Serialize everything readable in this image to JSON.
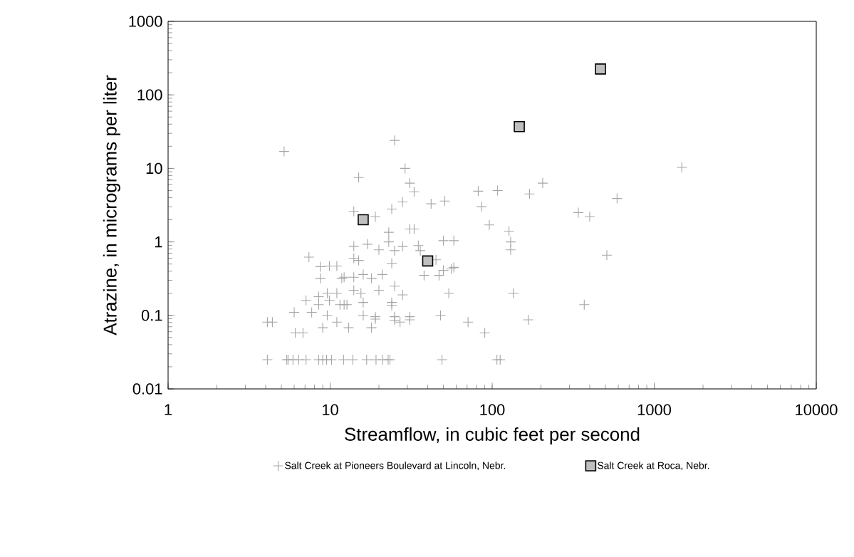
{
  "chart_data": {
    "type": "scatter",
    "xlabel": "Streamflow, in cubic feet per second",
    "ylabel": "Atrazine, in micrograms per liter",
    "log": "xy",
    "grid": false,
    "legend": "bottom",
    "xlim": [
      1,
      10000
    ],
    "xticks": [
      1,
      10,
      100,
      1000,
      10000
    ],
    "ylim": [
      0.01,
      1000
    ],
    "yticks": [
      0.01,
      0.1,
      1,
      10,
      100,
      1000
    ],
    "series": [
      {
        "name": "Salt Creek at Pioneers Boulevard at Lincoln, Nebr.",
        "color": "#a6a6a6",
        "marker": "cross",
        "x": [
          5.2,
          25,
          29,
          15,
          31,
          33,
          82,
          108,
          86,
          28,
          24,
          42,
          51,
          14,
          19,
          31,
          33,
          23,
          96,
          127,
          130,
          130,
          50,
          58,
          14,
          17,
          20,
          23,
          25,
          28,
          35,
          36,
          14,
          15,
          24,
          45,
          58,
          56,
          50,
          47,
          38,
          12.2,
          14,
          16,
          18,
          21,
          25,
          28,
          20,
          14,
          15.5,
          16,
          12.7,
          24,
          24,
          54,
          135,
          16,
          19,
          25,
          31,
          48,
          7.4,
          8.7,
          9.9,
          11,
          8.7,
          11.8,
          8.5,
          9.6,
          11,
          7.1,
          8.5,
          9.9,
          11.5,
          12.2,
          6,
          7.7,
          9.6,
          19,
          25,
          27,
          31,
          71,
          90,
          4.1,
          4.4,
          6.1,
          6.8,
          9,
          11,
          13,
          18,
          4.1,
          5.4,
          5.5,
          5.9,
          6.4,
          7.1,
          8.5,
          9,
          9.5,
          10.2,
          12.1,
          13.8,
          16.8,
          19.2,
          21.1,
          22.8,
          23.4,
          49,
          107,
          112,
          1480,
          205,
          170,
          590,
          340,
          400,
          510,
          370,
          167
        ],
        "values": [
          17,
          24,
          10,
          7.5,
          6.3,
          4.8,
          4.9,
          5,
          3,
          3.5,
          2.8,
          3.3,
          3.6,
          2.6,
          2.2,
          1.5,
          1.5,
          1.35,
          1.7,
          1.4,
          1,
          0.78,
          1.04,
          1.04,
          0.87,
          0.93,
          0.78,
          1,
          0.76,
          0.87,
          0.89,
          0.76,
          0.6,
          0.56,
          0.51,
          0.57,
          0.45,
          0.43,
          0.41,
          0.35,
          0.35,
          0.33,
          0.33,
          0.36,
          0.32,
          0.36,
          0.25,
          0.19,
          0.22,
          0.22,
          0.2,
          0.15,
          0.14,
          0.15,
          0.137,
          0.2,
          0.2,
          0.1,
          0.096,
          0.096,
          0.096,
          0.1,
          0.62,
          0.46,
          0.47,
          0.47,
          0.32,
          0.32,
          0.18,
          0.2,
          0.2,
          0.16,
          0.14,
          0.16,
          0.14,
          0.14,
          0.11,
          0.11,
          0.1,
          0.089,
          0.086,
          0.081,
          0.087,
          0.081,
          0.058,
          0.081,
          0.081,
          0.058,
          0.058,
          0.068,
          0.081,
          0.068,
          0.068,
          0.025,
          0.025,
          0.025,
          0.025,
          0.025,
          0.025,
          0.025,
          0.025,
          0.025,
          0.025,
          0.025,
          0.025,
          0.025,
          0.025,
          0.025,
          0.025,
          0.025,
          0.025,
          0.025,
          0.025,
          10.3,
          6.3,
          4.5,
          3.9,
          2.5,
          2.2,
          0.66,
          0.14,
          0.087
        ]
      },
      {
        "name": "Salt Creek at Roca, Nebr.",
        "color": "#bfbfbf",
        "marker": "square",
        "x": [
          16,
          40,
          147,
          466
        ],
        "values": [
          2,
          0.55,
          37,
          225
        ]
      }
    ]
  }
}
